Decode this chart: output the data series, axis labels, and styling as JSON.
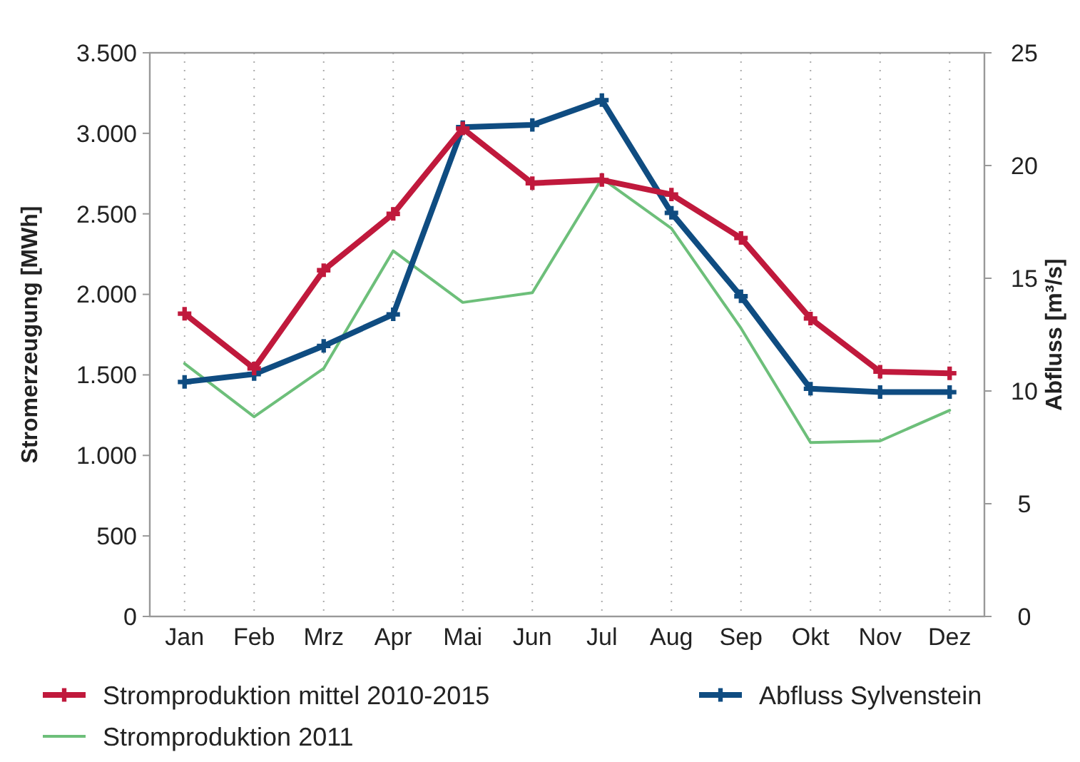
{
  "chart_data": {
    "type": "line",
    "ylabel": "Stromerzeugung [MWh]",
    "y2label": "Abfluss [m³/s]",
    "categories": [
      "Jan",
      "Feb",
      "Mrz",
      "Apr",
      "Mai",
      "Jun",
      "Jul",
      "Aug",
      "Sep",
      "Okt",
      "Nov",
      "Dez"
    ],
    "series": [
      {
        "name": "Stromproduktion mittel 2010-2015",
        "color": "#c0193c",
        "marker": "cross",
        "values": [
          1880,
          1540,
          2150,
          2500,
          3030,
          2690,
          2710,
          2620,
          2350,
          1850,
          1520,
          1510
        ]
      },
      {
        "name": "Abfluss Sylvenstein",
        "color": "#0f4c81",
        "marker": "cross",
        "axis": "y2",
        "values": [
          10.4,
          10.75,
          12.0,
          13.4,
          21.7,
          21.8,
          22.9,
          17.9,
          14.2,
          10.1,
          9.95,
          9.95
        ]
      },
      {
        "name": "Stromproduktion 2011",
        "color": "#6dbf7a",
        "marker": "none",
        "values": [
          1570,
          1240,
          1540,
          2270,
          1950,
          2010,
          2720,
          2410,
          1790,
          1080,
          1090,
          1280
        ]
      }
    ],
    "ylim": [
      0,
      3500
    ],
    "yticks": [
      0,
      500,
      {
        "value": 1000,
        "label": "1.000"
      },
      {
        "value": 1500,
        "label": "1.500"
      },
      {
        "value": 2000,
        "label": "2.000"
      },
      {
        "value": 2500,
        "label": "2.500"
      },
      {
        "value": 3000,
        "label": "3.000"
      },
      {
        "value": 3500,
        "label": "3.500"
      }
    ],
    "y2lim": [
      0,
      25
    ],
    "y2ticks": [
      0,
      5,
      10,
      15,
      20,
      25
    ],
    "grid": "x",
    "legend": "bottom"
  }
}
